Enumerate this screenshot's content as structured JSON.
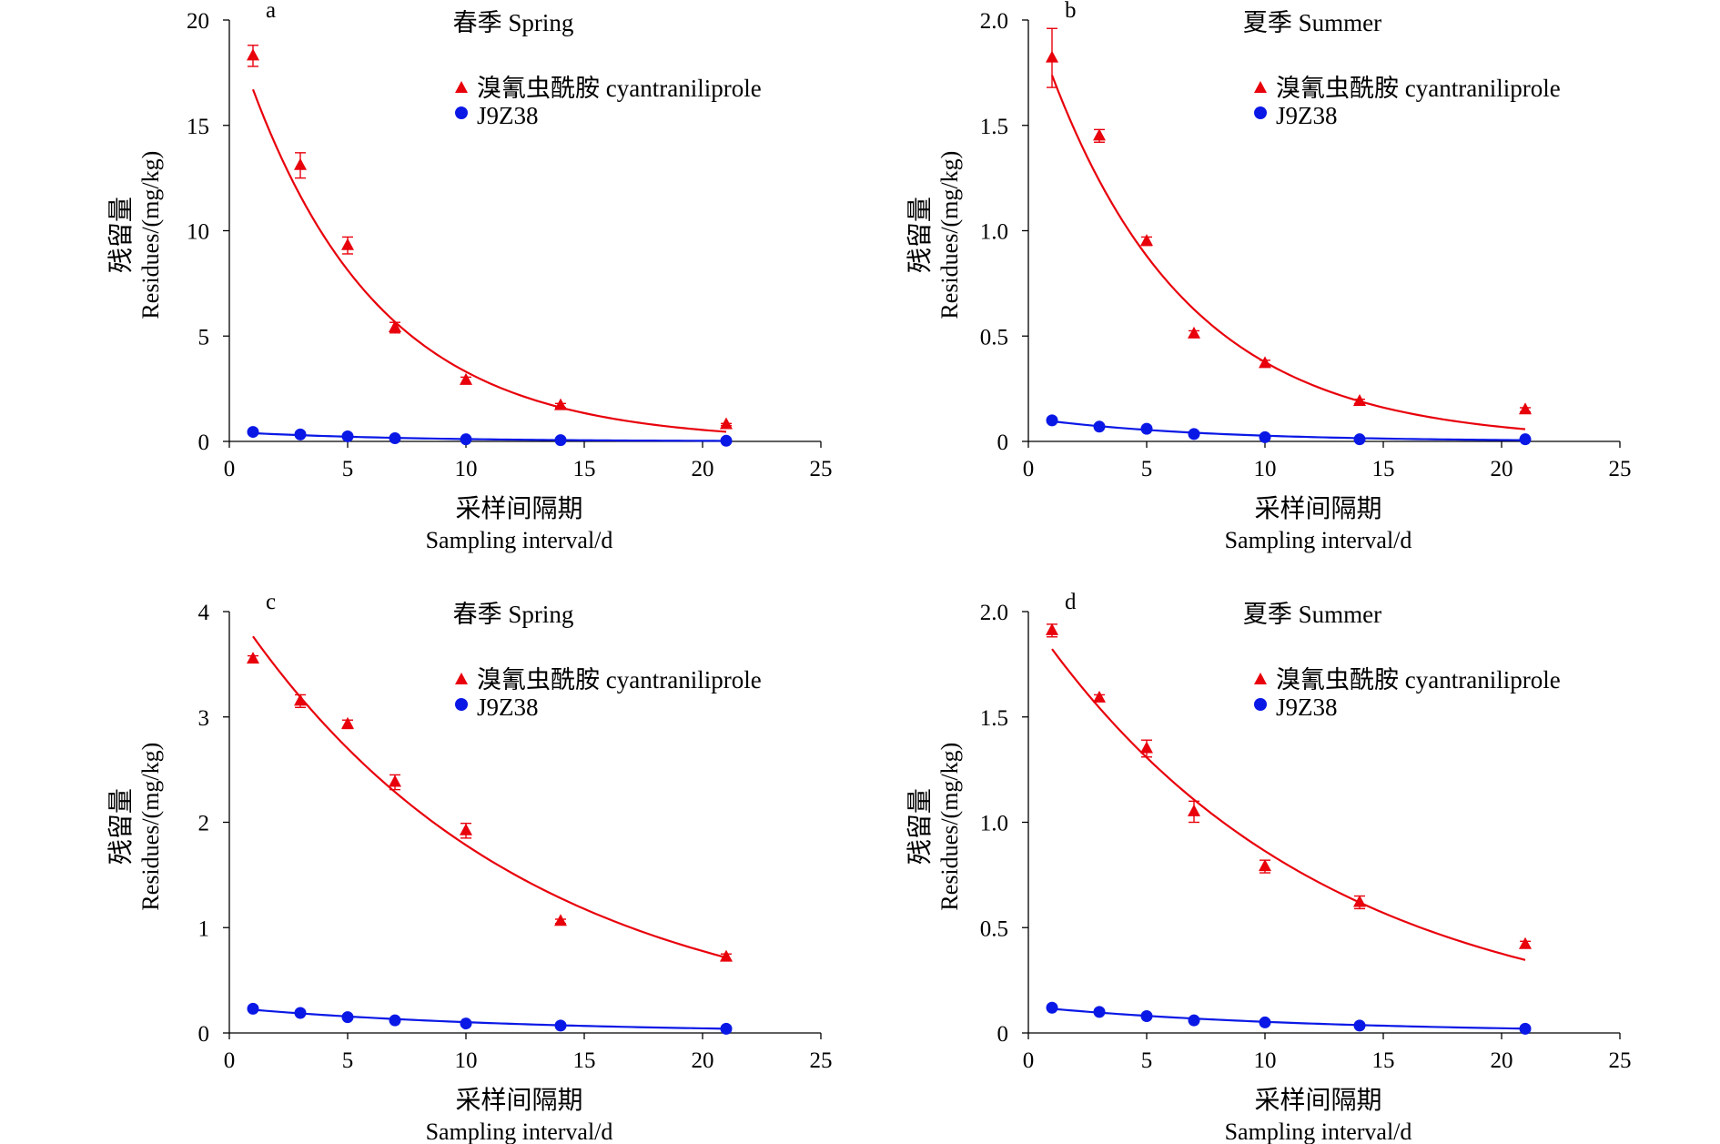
{
  "figure": {
    "legend": {
      "parent_label": "溴氰虫酰胺 cyantraniliprole",
      "metabolite_label": "J9Z38"
    },
    "xlabel_cn": "采样间隔期",
    "xlabel_en": "Sampling interval/d",
    "ylabel_cn": "残留量",
    "ylabel_en": "Residues/(mg/kg)",
    "colors": {
      "parent": "#e8000b",
      "metabolite": "#0a18e6",
      "axis": "#000000"
    }
  },
  "chart_data": [
    {
      "type": "scatter",
      "panel": "a",
      "title": "春季 Spring",
      "xlabel": "采样间隔期 Sampling interval/d",
      "ylabel": "残留量 Residues/(mg/kg)",
      "xlim": [
        0,
        25
      ],
      "ylim": [
        0,
        20
      ],
      "xticks": [
        "0",
        "5",
        "10",
        "15",
        "20",
        "25"
      ],
      "yticks": [
        "0",
        "5",
        "10",
        "15",
        "20"
      ],
      "grid": false,
      "legend_position": "upper-right",
      "series": [
        {
          "name": "溴氰虫酰胺 cyantraniliprole",
          "marker": "triangle",
          "color": "#e8000b",
          "x": [
            1,
            3,
            5,
            7,
            10,
            14,
            21
          ],
          "y": [
            18.3,
            13.1,
            9.3,
            5.4,
            2.9,
            1.7,
            0.8
          ],
          "err": [
            0.5,
            0.6,
            0.4,
            0.25,
            0.15,
            0.1,
            0.05
          ],
          "fit": {
            "model": "exponential",
            "a": 20.0,
            "k": 0.18
          }
        },
        {
          "name": "J9Z38",
          "marker": "circle",
          "color": "#0a18e6",
          "x": [
            1,
            3,
            5,
            7,
            10,
            14,
            21
          ],
          "y": [
            0.45,
            0.33,
            0.24,
            0.15,
            0.1,
            0.06,
            0.03
          ],
          "err": [
            0.02,
            0.02,
            0.02,
            0.01,
            0.01,
            0.01,
            0.01
          ],
          "fit": {
            "model": "exponential",
            "a": 0.45,
            "k": 0.14
          }
        }
      ]
    },
    {
      "type": "scatter",
      "panel": "b",
      "title": "夏季 Summer",
      "xlabel": "采样间隔期 Sampling interval/d",
      "ylabel": "残留量 Residues/(mg/kg)",
      "xlim": [
        0,
        25
      ],
      "ylim": [
        0,
        2.0
      ],
      "xticks": [
        "0",
        "5",
        "10",
        "15",
        "20",
        "25"
      ],
      "yticks": [
        "0",
        "0.5",
        "1.0",
        "1.5",
        "2.0"
      ],
      "grid": false,
      "legend_position": "upper-right",
      "series": [
        {
          "name": "溴氰虫酰胺 cyantraniliprole",
          "marker": "triangle",
          "color": "#e8000b",
          "x": [
            1,
            3,
            5,
            7,
            10,
            14,
            21
          ],
          "y": [
            1.82,
            1.45,
            0.95,
            0.51,
            0.37,
            0.19,
            0.15
          ],
          "err": [
            0.14,
            0.03,
            0.02,
            0.015,
            0.015,
            0.01,
            0.01
          ],
          "fit": {
            "model": "exponential",
            "a": 2.06,
            "k": 0.17
          }
        },
        {
          "name": "J9Z38",
          "marker": "circle",
          "color": "#0a18e6",
          "x": [
            1,
            3,
            5,
            7,
            10,
            14,
            21
          ],
          "y": [
            0.1,
            0.07,
            0.06,
            0.035,
            0.02,
            0.01,
            0.01
          ],
          "err": [
            0.005,
            0.005,
            0.005,
            0.003,
            0.002,
            0.002,
            0.002
          ],
          "fit": {
            "model": "exponential",
            "a": 0.11,
            "k": 0.14
          }
        }
      ]
    },
    {
      "type": "scatter",
      "panel": "c",
      "title": "春季 Spring",
      "xlabel": "采样间隔期 Sampling interval/d",
      "ylabel": "残留量 Residues/(mg/kg)",
      "xlim": [
        0,
        25
      ],
      "ylim": [
        0,
        4
      ],
      "xticks": [
        "0",
        "5",
        "10",
        "15",
        "20",
        "25"
      ],
      "yticks": [
        "0",
        "1",
        "2",
        "3",
        "4"
      ],
      "grid": false,
      "legend_position": "upper-right",
      "series": [
        {
          "name": "溴氰虫酰胺 cyantraniliprole",
          "marker": "triangle",
          "color": "#e8000b",
          "x": [
            1,
            3,
            5,
            7,
            10,
            14,
            21
          ],
          "y": [
            3.55,
            3.15,
            2.93,
            2.38,
            1.92,
            1.06,
            0.72
          ],
          "err": [
            0.03,
            0.06,
            0.04,
            0.07,
            0.07,
            0.02,
            0.03
          ],
          "fit": {
            "model": "exponential",
            "a": 4.09,
            "k": 0.083
          }
        },
        {
          "name": "J9Z38",
          "marker": "circle",
          "color": "#0a18e6",
          "x": [
            1,
            3,
            5,
            7,
            10,
            14,
            21
          ],
          "y": [
            0.23,
            0.19,
            0.15,
            0.12,
            0.09,
            0.07,
            0.04
          ],
          "err": [
            0.01,
            0.01,
            0.01,
            0.01,
            0.01,
            0.01,
            0.005
          ],
          "fit": {
            "model": "exponential",
            "a": 0.24,
            "k": 0.085
          }
        }
      ]
    },
    {
      "type": "scatter",
      "panel": "d",
      "title": "夏季 Summer",
      "xlabel": "采样间隔期 Sampling interval/d",
      "ylabel": "残留量 Residues/(mg/kg)",
      "xlim": [
        0,
        25
      ],
      "ylim": [
        0,
        2.0
      ],
      "xticks": [
        "0",
        "5",
        "10",
        "15",
        "20",
        "25"
      ],
      "yticks": [
        "0",
        "0.5",
        "1.0",
        "1.5",
        "2.0"
      ],
      "grid": false,
      "legend_position": "upper-right",
      "series": [
        {
          "name": "溴氰虫酰胺 cyantraniliprole",
          "marker": "triangle",
          "color": "#e8000b",
          "x": [
            1,
            3,
            5,
            7,
            10,
            14,
            21
          ],
          "y": [
            1.91,
            1.59,
            1.35,
            1.05,
            0.79,
            0.62,
            0.42
          ],
          "err": [
            0.03,
            0.015,
            0.04,
            0.05,
            0.03,
            0.03,
            0.015
          ],
          "fit": {
            "model": "exponential",
            "a": 1.98,
            "k": 0.083
          }
        },
        {
          "name": "J9Z38",
          "marker": "circle",
          "color": "#0a18e6",
          "x": [
            1,
            3,
            5,
            7,
            10,
            14,
            21
          ],
          "y": [
            0.12,
            0.1,
            0.08,
            0.06,
            0.05,
            0.035,
            0.02
          ],
          "err": [
            0.005,
            0.005,
            0.005,
            0.004,
            0.004,
            0.003,
            0.003
          ],
          "fit": {
            "model": "exponential",
            "a": 0.125,
            "k": 0.086
          }
        }
      ]
    }
  ]
}
